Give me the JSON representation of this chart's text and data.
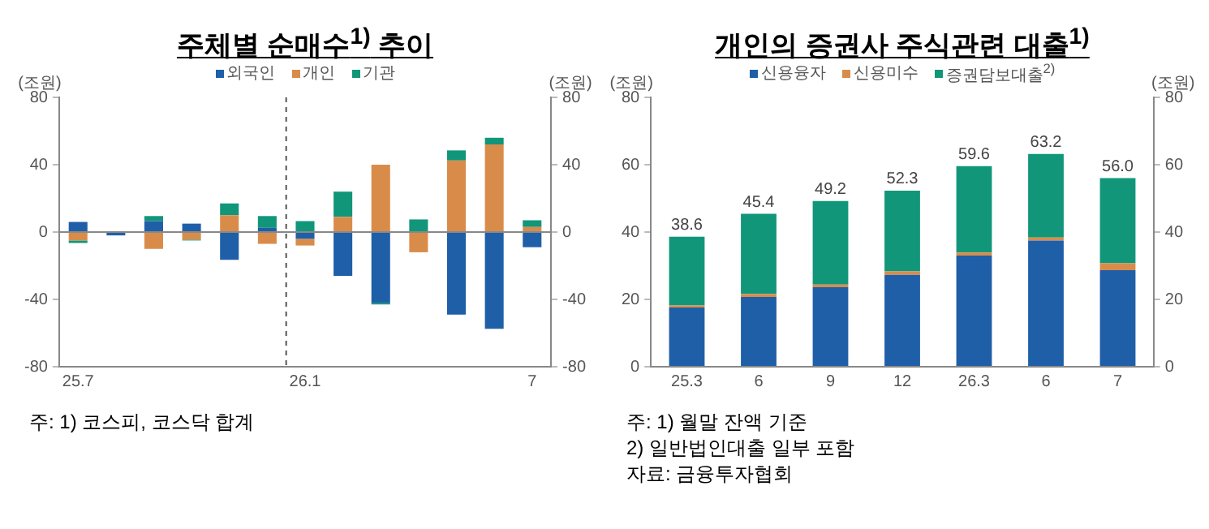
{
  "chart_data": [
    {
      "type": "bar",
      "title": "주체별 순매수$^{1)}$ 추이",
      "ylabel": "(조원)",
      "y2label": "(조원)",
      "stacked": true,
      "legend": "top",
      "grid": false,
      "categories": [
        "25.7",
        null,
        null,
        null,
        null,
        null,
        "26.1",
        null,
        null,
        null,
        null,
        null,
        "7"
      ],
      "series": [
        {
          "name": "외국인",
          "color": "#1f5fa8",
          "values": [
            6,
            -2,
            6.5,
            5,
            -16.5,
            2.5,
            -4,
            -26,
            -42,
            0,
            -49,
            -57.5,
            -9
          ]
        },
        {
          "name": "개인",
          "color": "#d98c4a",
          "values": [
            -5,
            0,
            -10,
            -4.5,
            10,
            -7,
            -4,
            9,
            40,
            -12,
            42.5,
            52,
            3
          ]
        },
        {
          "name": "기관",
          "color": "#12967a",
          "values": [
            -1.5,
            0,
            3,
            -0.5,
            7,
            7,
            6.5,
            15,
            -1,
            7.5,
            6,
            4,
            4
          ]
        }
      ],
      "ylim": [
        -80,
        80
      ],
      "yticks": [
        -80,
        -40,
        0,
        40,
        80
      ],
      "y2lim": [
        -80,
        80
      ],
      "y2ticks": [
        -80,
        -40,
        0,
        40,
        80
      ],
      "ref_lines": [
        {
          "axis": "x",
          "value": "26.1",
          "line_style": "dashed",
          "color": "#555555"
        }
      ],
      "annotations": [
        "주: 1) 코스피, 코스닥 합계"
      ]
    },
    {
      "type": "bar",
      "title": "개인의 증권사 주식관련 대출$^{1)}$",
      "ylabel": "(조원)",
      "y2label": "(조원)",
      "stacked": true,
      "legend": "top",
      "grid": false,
      "categories": [
        "25.3",
        "6",
        "9",
        "12",
        "26.3",
        "6",
        "7"
      ],
      "series": [
        {
          "name": "신용융자",
          "color": "#1f5fa8",
          "values": [
            17.6,
            20.7,
            23.6,
            27.3,
            33.0,
            37.5,
            28.7
          ]
        },
        {
          "name": "신용미수",
          "color": "#d98c4a",
          "values": [
            0.6,
            0.9,
            0.8,
            1.0,
            0.9,
            0.9,
            2.0
          ]
        },
        {
          "name": "증권담보대출$^{2)}$",
          "color": "#12967a",
          "values": [
            20.4,
            23.8,
            24.8,
            24.0,
            25.7,
            24.8,
            25.3
          ]
        }
      ],
      "totals": [
        "38.6",
        "45.4",
        "49.2",
        "52.3",
        "59.6",
        "63.2",
        "56.0"
      ],
      "ylim": [
        0,
        80
      ],
      "yticks": [
        0,
        20,
        40,
        60,
        80
      ],
      "y2lim": [
        0,
        80
      ],
      "y2ticks": [
        0,
        20,
        40,
        60,
        80
      ],
      "annotations": [
        "주: 1) 월말 잔액 기준",
        "2) 일반법인대출 일부 포함",
        "자료: 금융투자협회"
      ]
    }
  ]
}
